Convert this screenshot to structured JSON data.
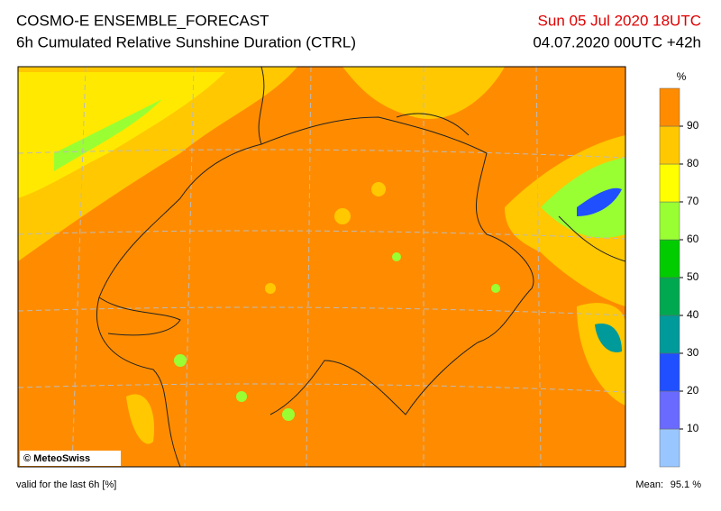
{
  "header": {
    "title": "COSMO-E ENSEMBLE_FORECAST",
    "subtitle": "6h Cumulated Relative Sunshine Duration (CTRL)",
    "valid_time": "Sun 05 Jul 2020 18UTC",
    "run": "04.07.2020 00UTC +42h"
  },
  "legend": {
    "unit": "%",
    "ticks": [
      10,
      20,
      30,
      40,
      50,
      60,
      70,
      80,
      90
    ],
    "colors": [
      "#99c6ff",
      "#6a6aff",
      "#1f4fff",
      "#009a9a",
      "#00a850",
      "#00cc00",
      "#99ff33",
      "#ffff00",
      "#ffc800",
      "#ff8c00"
    ]
  },
  "credit": "© MeteoSwiss",
  "footer": {
    "note": "valid for the last 6h [%]",
    "mean_label": "Mean:",
    "mean_value": "95.1 %"
  }
}
